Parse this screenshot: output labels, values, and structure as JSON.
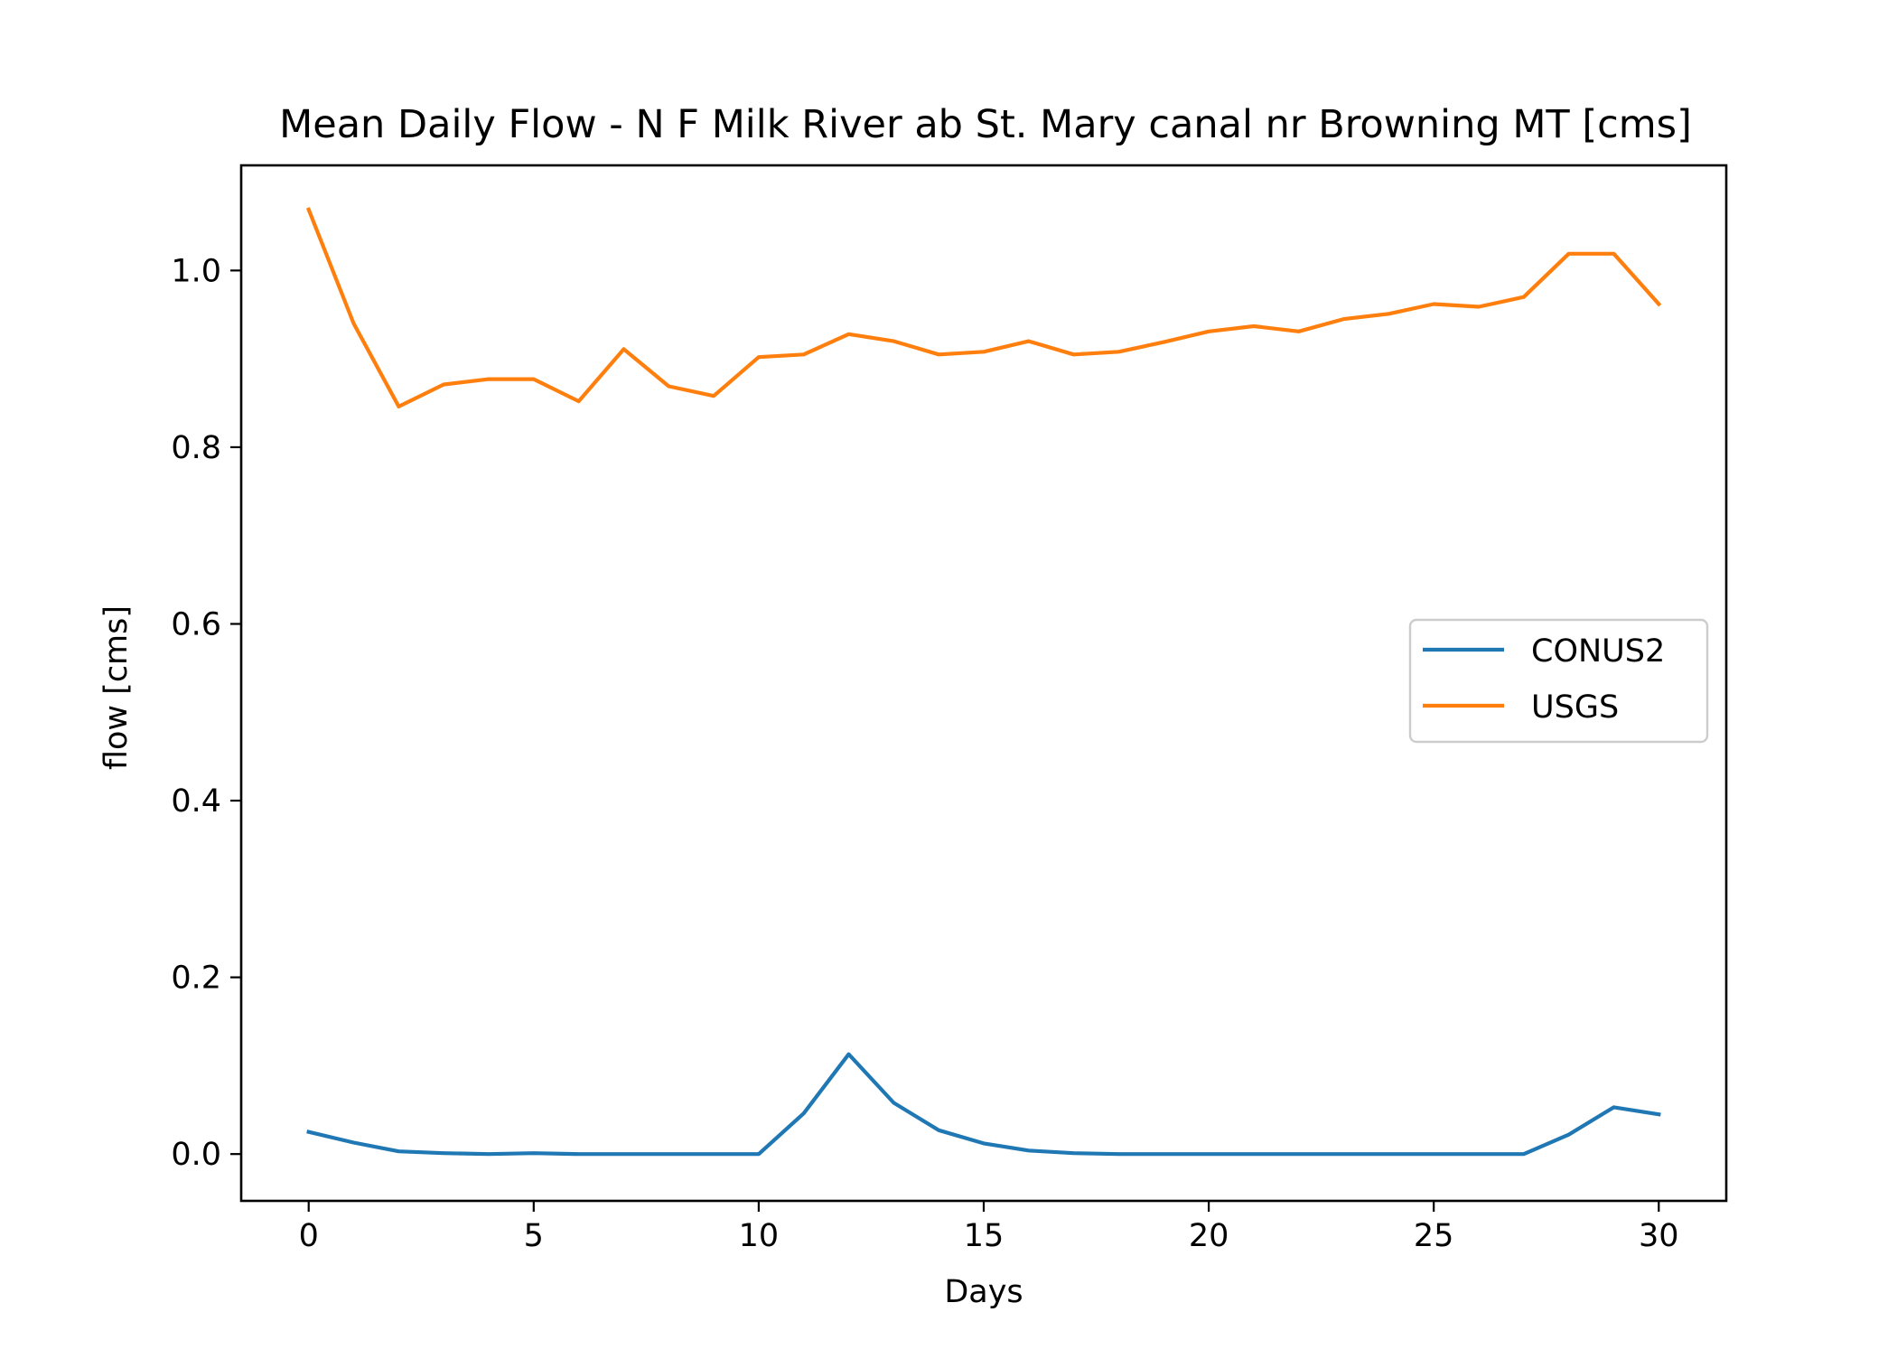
{
  "chart_data": {
    "type": "line",
    "title": "Mean Daily Flow - N F Milk River ab St. Mary canal nr Browning MT [cms]",
    "xlabel": "Days",
    "ylabel": "flow [cms]",
    "xlim": [
      -1.5,
      31.5
    ],
    "ylim": [
      -0.053,
      1.119
    ],
    "xticks": [
      0,
      5,
      10,
      15,
      20,
      25,
      30
    ],
    "xtick_labels": [
      "0",
      "5",
      "10",
      "15",
      "20",
      "25",
      "30"
    ],
    "yticks": [
      0.0,
      0.2,
      0.4,
      0.6,
      0.8,
      1.0
    ],
    "ytick_labels": [
      "0.0",
      "0.2",
      "0.4",
      "0.6",
      "0.8",
      "1.0"
    ],
    "grid": false,
    "legend_position": "center-right",
    "x": [
      0,
      1,
      2,
      3,
      4,
      5,
      6,
      7,
      8,
      9,
      10,
      11,
      12,
      13,
      14,
      15,
      16,
      17,
      18,
      19,
      20,
      21,
      22,
      23,
      24,
      25,
      26,
      27,
      28,
      29,
      30
    ],
    "series": [
      {
        "name": "CONUS2",
        "color": "#1f77b4",
        "values": [
          0.025,
          0.013,
          0.003,
          0.001,
          0.0,
          0.001,
          0.0,
          0.0,
          0.0,
          0.0,
          0.0,
          0.046,
          0.113,
          0.058,
          0.027,
          0.012,
          0.004,
          0.001,
          0.0,
          0.0,
          0.0,
          0.0,
          0.0,
          0.0,
          0.0,
          0.0,
          0.0,
          0.0,
          0.022,
          0.053,
          0.045
        ]
      },
      {
        "name": "USGS",
        "color": "#ff7f0e",
        "values": [
          1.069,
          0.94,
          0.846,
          0.871,
          0.877,
          0.877,
          0.852,
          0.911,
          0.869,
          0.858,
          0.902,
          0.905,
          0.928,
          0.92,
          0.905,
          0.908,
          0.92,
          0.905,
          0.908,
          0.919,
          0.931,
          0.937,
          0.931,
          0.945,
          0.951,
          0.962,
          0.959,
          0.97,
          1.019,
          1.019,
          0.962
        ]
      }
    ]
  }
}
